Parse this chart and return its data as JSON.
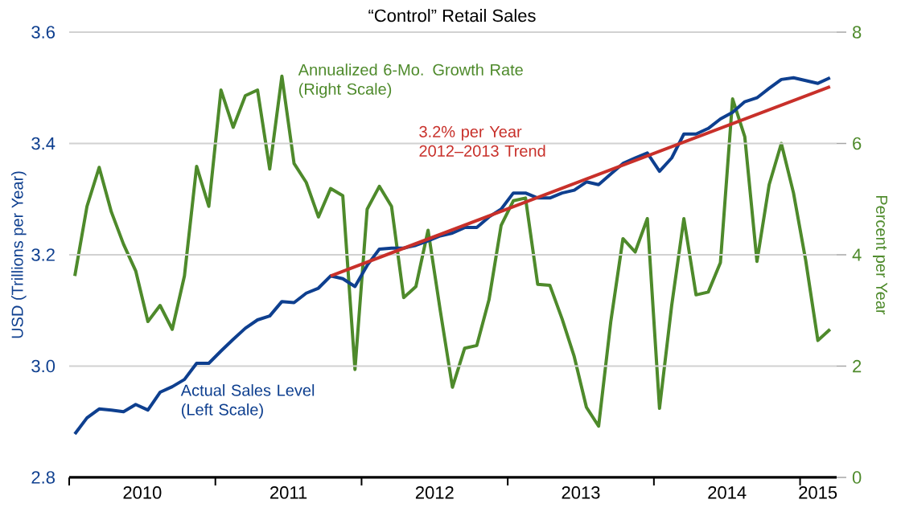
{
  "chart_data": {
    "type": "line",
    "title": "“Control” Retail Sales",
    "ylabel": "USD (Trillions per Year)",
    "y2label": "Percent per Year",
    "x": [
      "2010-01-15",
      "2010-02-15",
      "2010-03-15",
      "2010-04-15",
      "2010-05-15",
      "2010-06-15",
      "2010-07-15",
      "2010-08-15",
      "2010-09-15",
      "2010-10-15",
      "2010-11-15",
      "2010-12-15",
      "2011-01-15",
      "2011-02-15",
      "2011-03-15",
      "2011-04-15",
      "2011-05-15",
      "2011-06-15",
      "2011-07-15",
      "2011-08-15",
      "2011-09-15",
      "2011-10-15",
      "2011-11-15",
      "2011-12-15",
      "2012-01-15",
      "2012-02-15",
      "2012-03-15",
      "2012-04-15",
      "2012-05-15",
      "2012-06-15",
      "2012-07-15",
      "2012-08-15",
      "2012-09-15",
      "2012-10-15",
      "2012-11-15",
      "2012-12-15",
      "2013-01-15",
      "2013-02-15",
      "2013-03-15",
      "2013-04-15",
      "2013-05-15",
      "2013-06-15",
      "2013-07-15",
      "2013-08-15",
      "2013-09-15",
      "2013-10-15",
      "2013-11-15",
      "2013-12-15",
      "2014-01-15",
      "2014-02-15",
      "2014-03-15",
      "2014-04-15",
      "2014-05-15",
      "2014-06-15",
      "2014-07-15",
      "2014-08-15",
      "2014-09-15",
      "2014-10-15",
      "2014-11-15",
      "2014-12-15",
      "2015-01-15",
      "2015-02-15",
      "2015-03-15"
    ],
    "series": [
      {
        "name": "Annualized 6-Mo. Growth Rate (Right Scale)",
        "color": "#4e8a2b",
        "axis": "y2",
        "values": [
          3.62,
          4.87,
          5.57,
          4.77,
          4.19,
          3.71,
          2.8,
          3.09,
          2.66,
          3.62,
          5.59,
          4.87,
          6.96,
          6.29,
          6.86,
          6.96,
          5.54,
          7.21,
          5.64,
          5.3,
          4.68,
          5.19,
          5.06,
          1.94,
          4.82,
          5.23,
          4.87,
          3.23,
          3.43,
          4.44,
          3.0,
          1.62,
          2.32,
          2.37,
          3.19,
          4.53,
          4.97,
          5.02,
          3.47,
          3.45,
          2.85,
          2.17,
          1.26,
          0.92,
          2.8,
          4.29,
          4.05,
          4.65,
          1.24,
          3.09,
          4.65,
          3.28,
          3.33,
          3.86,
          6.8,
          6.12,
          3.88,
          5.26,
          6.0,
          5.11,
          3.9,
          2.46,
          2.66
        ]
      },
      {
        "name": "Actual Sales Level (Left Scale)",
        "color": "#0e3f8f",
        "values": [
          2.878,
          2.907,
          2.923,
          2.921,
          2.918,
          2.931,
          2.921,
          2.953,
          2.963,
          2.976,
          3.005,
          3.005,
          3.027,
          3.048,
          3.068,
          3.083,
          3.09,
          3.116,
          3.114,
          3.131,
          3.14,
          3.162,
          3.157,
          3.143,
          3.181,
          3.21,
          3.212,
          3.212,
          3.217,
          3.225,
          3.234,
          3.239,
          3.249,
          3.249,
          3.268,
          3.282,
          3.311,
          3.311,
          3.302,
          3.302,
          3.311,
          3.316,
          3.331,
          3.326,
          3.345,
          3.364,
          3.374,
          3.383,
          3.35,
          3.374,
          3.417,
          3.417,
          3.427,
          3.444,
          3.456,
          3.475,
          3.482,
          3.499,
          3.515,
          3.518,
          3.513,
          3.508,
          3.518
        ]
      },
      {
        "name": "3.2% per Year 2012–2013 Trend",
        "color": "#c8302a",
        "type": "line",
        "x": [
          "2011-10-15",
          "2015-03-15"
        ],
        "values": [
          3.162,
          3.502
        ]
      }
    ],
    "xlim": [
      "2010-01-01",
      "2015-04-01"
    ],
    "xticks": [
      {
        "value": "2010-01-01",
        "label": null
      },
      {
        "value": "2010-07-01",
        "label": "2010"
      },
      {
        "value": "2011-01-01",
        "label": null
      },
      {
        "value": "2011-07-01",
        "label": "2011"
      },
      {
        "value": "2012-01-01",
        "label": null
      },
      {
        "value": "2012-07-01",
        "label": "2012"
      },
      {
        "value": "2013-01-01",
        "label": null
      },
      {
        "value": "2013-07-01",
        "label": "2013"
      },
      {
        "value": "2014-01-01",
        "label": null
      },
      {
        "value": "2014-07-01",
        "label": "2014"
      },
      {
        "value": "2015-01-01",
        "label": null
      },
      {
        "value": "2015-02-15",
        "label": "2015"
      }
    ],
    "ylim": [
      2.8,
      3.6
    ],
    "yticks": [
      2.8,
      {
        "value": 3.0,
        "label": "3.0"
      },
      3.2,
      3.4,
      3.6
    ],
    "y2lim": [
      0,
      8
    ],
    "y2ticks": [
      0,
      2,
      4,
      6,
      8
    ],
    "grid": "y",
    "marker": "none",
    "line_style": "solid"
  }
}
